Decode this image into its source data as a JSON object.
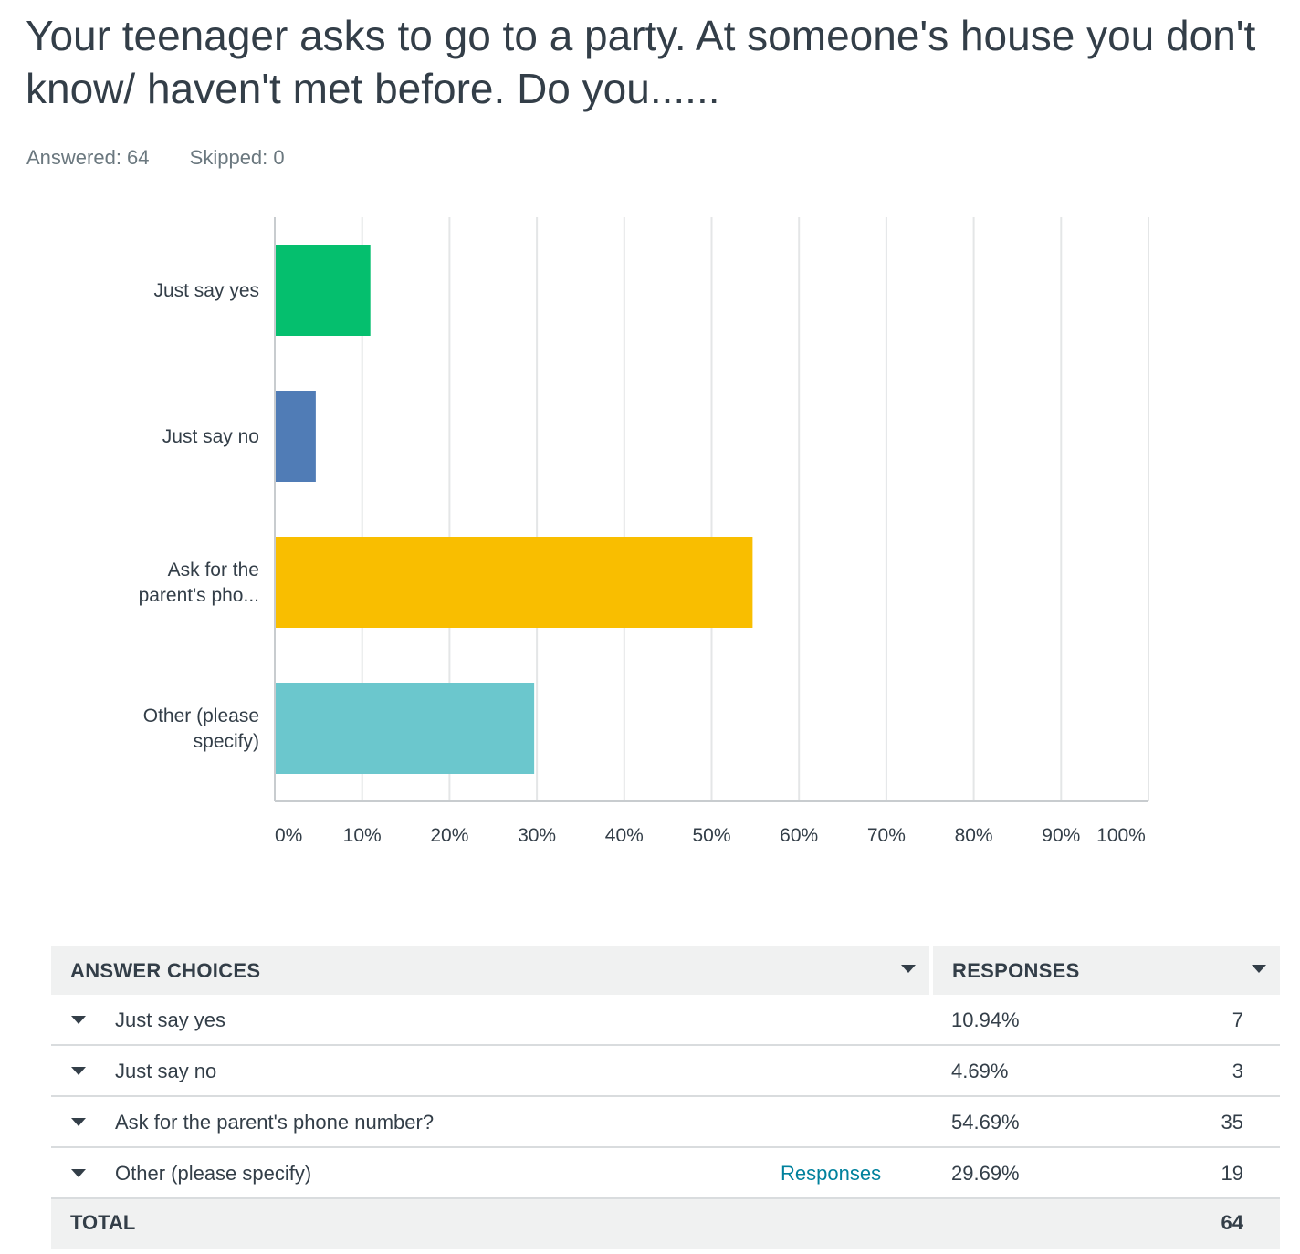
{
  "question": {
    "title": "Your teenager asks to go to a party.  At someone's house you don't know/ haven't met before.  Do you......",
    "answered_label": "Answered: 64",
    "skipped_label": "Skipped: 0"
  },
  "chart_data": {
    "type": "bar",
    "orientation": "horizontal",
    "categories": [
      [
        "Just say yes"
      ],
      [
        "Just say no"
      ],
      [
        "Ask for the",
        "parent's pho..."
      ],
      [
        "Other (please",
        "specify)"
      ]
    ],
    "values": [
      10.94,
      4.69,
      54.69,
      29.69
    ],
    "colors": [
      "#05bf6e",
      "#507cb6",
      "#f9be00",
      "#6bc7cd"
    ],
    "xlim": [
      0,
      100
    ],
    "xticks": [
      0,
      10,
      20,
      30,
      40,
      50,
      60,
      70,
      80,
      90,
      100
    ],
    "xtick_labels": [
      "0%",
      "10%",
      "20%",
      "30%",
      "40%",
      "50%",
      "60%",
      "70%",
      "80%",
      "90%",
      "100%"
    ],
    "grid": true,
    "xlabel": "",
    "ylabel": ""
  },
  "table": {
    "header_choices": "ANSWER CHOICES",
    "header_responses": "RESPONSES",
    "rows": [
      {
        "label": "Just say yes",
        "link": "",
        "percent": "10.94%",
        "count": "7"
      },
      {
        "label": "Just say no",
        "link": "",
        "percent": "4.69%",
        "count": "3"
      },
      {
        "label": "Ask for the parent's phone number?",
        "link": "",
        "percent": "54.69%",
        "count": "35"
      },
      {
        "label": "Other (please specify)",
        "link": "Responses",
        "percent": "29.69%",
        "count": "19"
      }
    ],
    "total_label": "TOTAL",
    "total_count": "64"
  }
}
